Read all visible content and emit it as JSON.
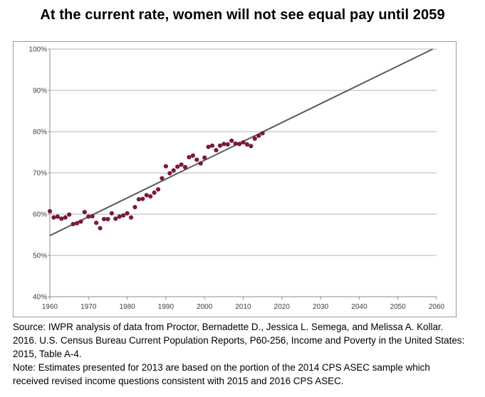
{
  "title": "At the current rate, women will not see equal pay until 2059",
  "chart_data": {
    "type": "scatter",
    "title": "At the current rate, women will not see equal pay until 2059",
    "xlabel": "",
    "ylabel": "",
    "xlim": [
      1960,
      2060
    ],
    "ylim": [
      40,
      100
    ],
    "x_ticks": [
      "1960",
      "1970",
      "1980",
      "1990",
      "2000",
      "2010",
      "2020",
      "2030",
      "2040",
      "2050",
      "2060"
    ],
    "y_ticks": [
      "40%",
      "50%",
      "60%",
      "70%",
      "80%",
      "90%",
      "100%"
    ],
    "grid": "horizontal",
    "marker_color": "#7b1a33",
    "trend_color": "#595959",
    "series": [
      {
        "type": "scatter",
        "points": [
          [
            1960,
            60.7
          ],
          [
            1961,
            59.2
          ],
          [
            1962,
            59.4
          ],
          [
            1963,
            58.9
          ],
          [
            1964,
            59.2
          ],
          [
            1965,
            59.9
          ],
          [
            1966,
            57.6
          ],
          [
            1967,
            57.8
          ],
          [
            1968,
            58.2
          ],
          [
            1969,
            60.5
          ],
          [
            1970,
            59.4
          ],
          [
            1971,
            59.5
          ],
          [
            1972,
            57.9
          ],
          [
            1973,
            56.6
          ],
          [
            1974,
            58.8
          ],
          [
            1975,
            58.8
          ],
          [
            1976,
            60.2
          ],
          [
            1977,
            58.9
          ],
          [
            1978,
            59.4
          ],
          [
            1979,
            59.7
          ],
          [
            1980,
            60.2
          ],
          [
            1981,
            59.2
          ],
          [
            1982,
            61.7
          ],
          [
            1983,
            63.6
          ],
          [
            1984,
            63.7
          ],
          [
            1985,
            64.6
          ],
          [
            1986,
            64.3
          ],
          [
            1987,
            65.2
          ],
          [
            1988,
            66.0
          ],
          [
            1989,
            68.7
          ],
          [
            1990,
            71.6
          ],
          [
            1991,
            69.9
          ],
          [
            1992,
            70.6
          ],
          [
            1993,
            71.5
          ],
          [
            1994,
            72.0
          ],
          [
            1995,
            71.4
          ],
          [
            1996,
            73.8
          ],
          [
            1997,
            74.2
          ],
          [
            1998,
            73.2
          ],
          [
            1999,
            72.3
          ],
          [
            2000,
            73.7
          ],
          [
            2001,
            76.3
          ],
          [
            2002,
            76.6
          ],
          [
            2003,
            75.5
          ],
          [
            2004,
            76.6
          ],
          [
            2005,
            77.0
          ],
          [
            2006,
            76.9
          ],
          [
            2007,
            77.8
          ],
          [
            2008,
            77.1
          ],
          [
            2009,
            77.0
          ],
          [
            2010,
            77.4
          ],
          [
            2011,
            76.9
          ],
          [
            2012,
            76.5
          ],
          [
            2013,
            78.3
          ],
          [
            2014,
            79.0
          ],
          [
            2015,
            79.6
          ]
        ]
      },
      {
        "type": "line",
        "points": [
          [
            1960,
            54.8
          ],
          [
            2059,
            100
          ]
        ]
      }
    ]
  },
  "caption": {
    "source": "Source: IWPR analysis of data from Proctor, Bernadette D., Jessica L. Semega, and Melissa A. Kollar. 2016. U.S. Census Bureau Current Population Reports, P60-256, Income and Poverty in the United States: 2015, Table A-4.",
    "note": "Note: Estimates presented for 2013 are based on the portion of the 2014 CPS ASEC sample which received revised income questions consistent with 2015 and 2016 CPS ASEC."
  }
}
